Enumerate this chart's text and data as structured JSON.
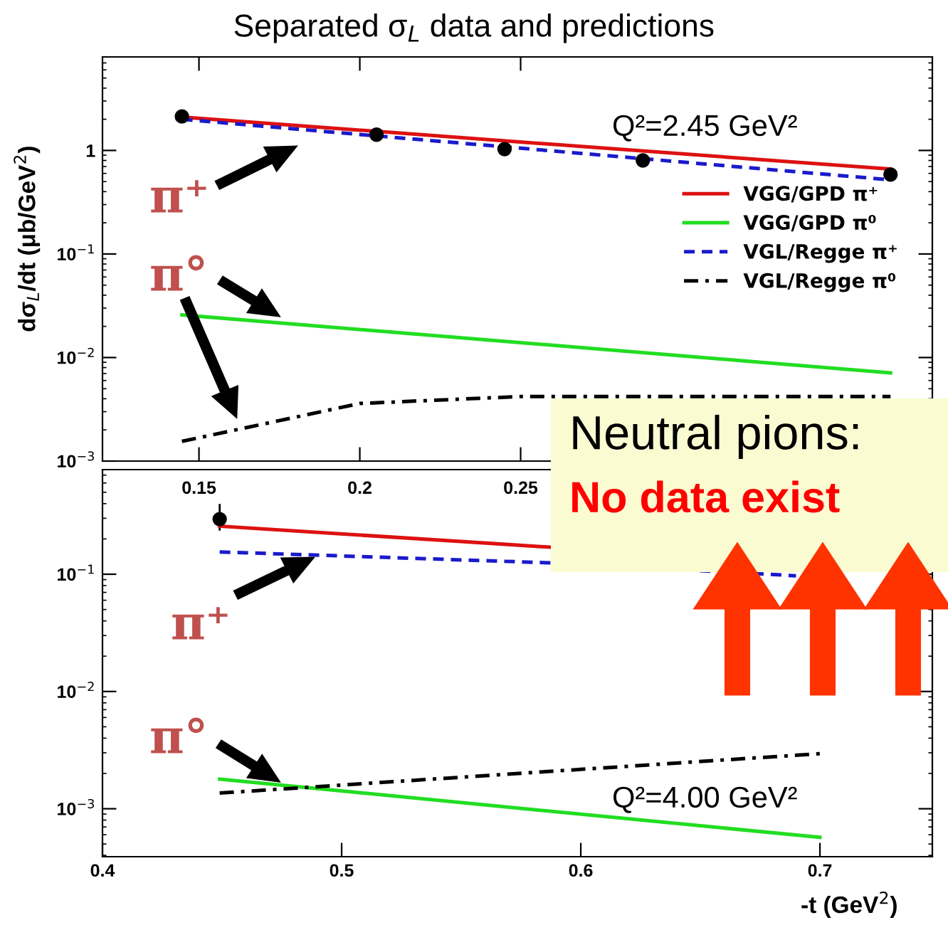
{
  "chart_data": [
    {
      "type": "line",
      "title": "Separated σ$_{L}$ data and predictions",
      "ylabel": "dσ$_{L}$/dt (μb/GeV$^{2}$)",
      "log": "y",
      "xlim": [
        0.12,
        0.378
      ],
      "ylim": [
        0.001,
        8
      ],
      "xticks": [
        0.15,
        0.2,
        0.25
      ],
      "yticks": [
        {
          "value": 0.001,
          "label": "10$^{−3}$"
        },
        {
          "value": 0.01,
          "label": "10$^{−2}$"
        },
        {
          "value": 0.1,
          "label": "10$^{−1}$"
        },
        {
          "value": 1,
          "label": "1"
        }
      ],
      "grid": false,
      "legend": "center right",
      "annotations": [
        "Q²=2.45 GeV²",
        "π⁺",
        "π°"
      ],
      "series": [
        {
          "type": "scatter",
          "color": "#000000",
          "marker": "circle",
          "x": [
            0.1447,
            0.2052,
            0.245,
            0.288,
            0.365
          ],
          "values": [
            2.13,
            1.42,
            1.03,
            0.8,
            0.585
          ]
        },
        {
          "name": "VGG/GPD π⁺",
          "color": "#dd1111",
          "line_style": "solid",
          "x": [
            0.1447,
            0.365
          ],
          "values": [
            2.1,
            0.66
          ]
        },
        {
          "name": "VGG/GPD π⁰",
          "color": "#22dd22",
          "line_style": "solid",
          "x": [
            0.1447,
            0.365
          ],
          "values": [
            0.0258,
            0.0071
          ]
        },
        {
          "name": "VGL/Regge π⁺",
          "color": "#1a1acc",
          "line_style": "dashed",
          "x": [
            0.1447,
            0.365
          ],
          "values": [
            2.0,
            0.52
          ]
        },
        {
          "name": "VGL/Regge π⁰",
          "color": "#000000",
          "line_style": "dashdot",
          "x": [
            0.1447,
            0.2,
            0.25,
            0.365
          ],
          "values": [
            0.00155,
            0.0036,
            0.0042,
            0.0042
          ]
        }
      ]
    },
    {
      "type": "line",
      "xlabel": "-t (GeV$^{2}$)",
      "log": "y",
      "xlim": [
        0.4,
        0.747
      ],
      "ylim": [
        0.00039,
        0.78
      ],
      "xticks": [
        0.4,
        0.5,
        0.6,
        0.7
      ],
      "yticks": [
        {
          "value": 0.001,
          "label": "10$^{−3}$"
        },
        {
          "value": 0.01,
          "label": "10$^{−2}$"
        },
        {
          "value": 0.1,
          "label": "10$^{−1}$"
        }
      ],
      "grid": false,
      "annotations": [
        "Q²=4.00 GeV²",
        "π⁺",
        "π°",
        "Neutral pions:",
        "No data exist"
      ],
      "series": [
        {
          "type": "scatter",
          "color": "#000000",
          "marker": "circle",
          "x": [
            0.449
          ],
          "values": [
            0.295
          ],
          "errors": [
            [
              0.24,
              0.39
            ]
          ]
        },
        {
          "color": "#dd1111",
          "line_style": "solid",
          "x": [
            0.449,
            0.5875
          ],
          "values": [
            0.257,
            0.17
          ]
        },
        {
          "color": "#22dd22",
          "line_style": "solid",
          "x": [
            0.449,
            0.7
          ],
          "values": [
            0.00179,
            0.00057
          ]
        },
        {
          "color": "#1a1acc",
          "line_style": "dashed",
          "x": [
            0.449,
            0.5875,
            0.69
          ],
          "values": [
            0.155,
            0.125,
            0.097
          ]
        },
        {
          "color": "#000000",
          "line_style": "dashdot",
          "x": [
            0.449,
            0.7
          ],
          "values": [
            0.00136,
            0.00295
          ]
        }
      ]
    }
  ]
}
